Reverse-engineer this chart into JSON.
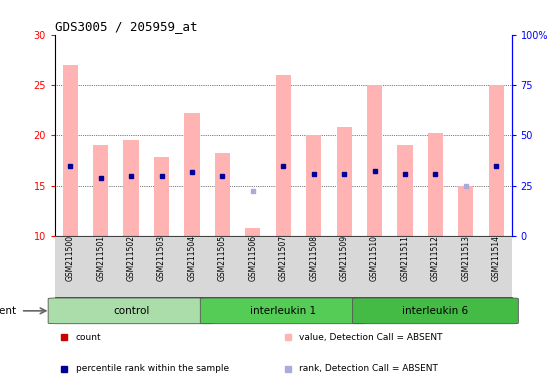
{
  "title": "GDS3005 / 205959_at",
  "samples": [
    "GSM211500",
    "GSM211501",
    "GSM211502",
    "GSM211503",
    "GSM211504",
    "GSM211505",
    "GSM211506",
    "GSM211507",
    "GSM211508",
    "GSM211509",
    "GSM211510",
    "GSM211511",
    "GSM211512",
    "GSM211513",
    "GSM211514"
  ],
  "groups": [
    {
      "label": "control",
      "start": 0,
      "end": 5,
      "color": "#aaddaa"
    },
    {
      "label": "interleukin 1",
      "start": 5,
      "end": 10,
      "color": "#55cc55"
    },
    {
      "label": "interleukin 6",
      "start": 10,
      "end": 15,
      "color": "#44bb44"
    }
  ],
  "bar_values": [
    27.0,
    19.0,
    19.5,
    17.8,
    22.2,
    18.2,
    10.8,
    26.0,
    20.0,
    20.8,
    25.0,
    19.0,
    20.2,
    15.0,
    25.0
  ],
  "rank_values": [
    17.0,
    15.8,
    16.0,
    16.0,
    16.4,
    16.0,
    14.5,
    17.0,
    16.2,
    16.2,
    16.5,
    16.2,
    16.2,
    15.0,
    17.0
  ],
  "absent_bar": [
    true,
    true,
    true,
    true,
    true,
    true,
    true,
    true,
    true,
    true,
    true,
    true,
    true,
    true,
    true
  ],
  "absent_rank": [
    false,
    false,
    false,
    false,
    false,
    false,
    true,
    false,
    false,
    false,
    false,
    false,
    false,
    true,
    false
  ],
  "ylim_left": [
    10,
    30
  ],
  "ylim_right": [
    0,
    100
  ],
  "yticks_left": [
    10,
    15,
    20,
    25,
    30
  ],
  "yticks_right": [
    0,
    25,
    50,
    75,
    100
  ],
  "ytick_labels_right": [
    "0",
    "25",
    "50",
    "75",
    "100%"
  ],
  "color_bar_present": "#cc0000",
  "color_rank_present": "#000099",
  "color_bar_absent": "#ffb3b3",
  "color_rank_absent": "#aaaadd",
  "bar_width": 0.5,
  "agent_label": "agent",
  "legend_items": [
    {
      "color": "#cc0000",
      "label": "count"
    },
    {
      "color": "#000099",
      "label": "percentile rank within the sample"
    },
    {
      "color": "#ffb3b3",
      "label": "value, Detection Call = ABSENT"
    },
    {
      "color": "#aaaadd",
      "label": "rank, Detection Call = ABSENT"
    }
  ],
  "plot_bg": "#ffffff",
  "xticklabel_bg": "#d8d8d8"
}
